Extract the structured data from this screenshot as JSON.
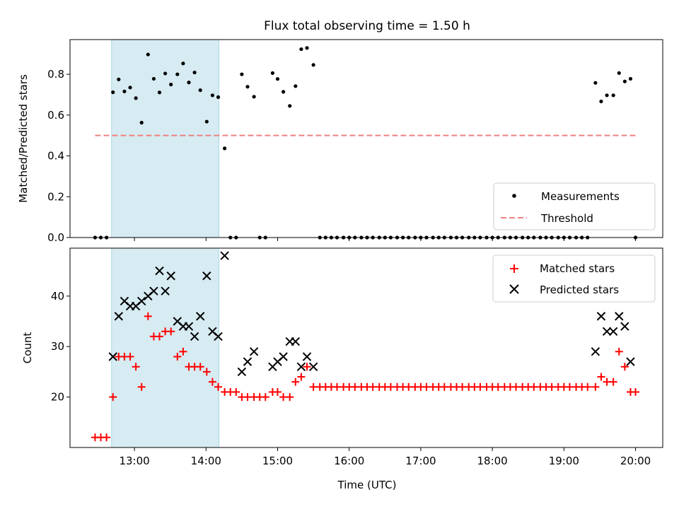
{
  "figure": {
    "title": "Flux total observing time = 1.50 h",
    "xlabel": "Time (UTC)",
    "xticks": [
      "13:00",
      "14:00",
      "15:00",
      "16:00",
      "17:00",
      "18:00",
      "19:00",
      "20:00"
    ]
  },
  "colors": {
    "shade": "#add8e6",
    "threshold": "#f08080",
    "matched": "#ff0000",
    "predicted": "#000000",
    "measurements": "#000000"
  },
  "chart_data": [
    {
      "type": "scatter",
      "ylabel": "Matched/Predicted stars",
      "xunit": "hours UTC",
      "xlim": [
        12.1,
        20.38
      ],
      "ylim": [
        0,
        0.97
      ],
      "yticks": [
        "0.0",
        "0.2",
        "0.4",
        "0.6",
        "0.8"
      ],
      "shaded_span": [
        12.68,
        14.18
      ],
      "threshold": {
        "name": "Threshold",
        "value": 0.5,
        "x": [
          12.45,
          20.0
        ]
      },
      "legend": {
        "position": "lower-right",
        "entries": [
          "Measurements",
          "Threshold"
        ]
      },
      "series": [
        {
          "name": "Measurements",
          "points": [
            [
              12.45,
              0
            ],
            [
              12.53,
              0
            ],
            [
              12.61,
              0
            ],
            [
              12.7,
              0.712
            ],
            [
              12.78,
              0.775
            ],
            [
              12.86,
              0.716
            ],
            [
              12.94,
              0.735
            ],
            [
              13.02,
              0.683
            ],
            [
              13.1,
              0.563
            ],
            [
              13.19,
              0.897
            ],
            [
              13.27,
              0.778
            ],
            [
              13.35,
              0.711
            ],
            [
              13.43,
              0.804
            ],
            [
              13.51,
              0.75
            ],
            [
              13.6,
              0.8
            ],
            [
              13.68,
              0.853
            ],
            [
              13.76,
              0.76
            ],
            [
              13.84,
              0.809
            ],
            [
              13.92,
              0.722
            ],
            [
              14.01,
              0.568
            ],
            [
              14.09,
              0.697
            ],
            [
              14.17,
              0.688
            ],
            [
              14.26,
              0.437
            ],
            [
              14.34,
              0
            ],
            [
              14.42,
              0
            ],
            [
              14.5,
              0.8
            ],
            [
              14.58,
              0.739
            ],
            [
              14.67,
              0.69
            ],
            [
              14.75,
              0
            ],
            [
              14.83,
              0
            ],
            [
              14.93,
              0.806
            ],
            [
              15.0,
              0.777
            ],
            [
              15.08,
              0.714
            ],
            [
              15.17,
              0.645
            ],
            [
              15.25,
              0.742
            ],
            [
              15.33,
              0.923
            ],
            [
              15.41,
              0.929
            ],
            [
              15.5,
              0.846
            ],
            [
              15.59,
              0
            ],
            [
              15.67,
              0
            ],
            [
              15.75,
              0
            ],
            [
              15.83,
              0
            ],
            [
              15.92,
              0
            ],
            [
              16.0,
              0
            ],
            [
              16.08,
              0
            ],
            [
              16.17,
              0
            ],
            [
              16.25,
              0
            ],
            [
              16.33,
              0
            ],
            [
              16.42,
              0
            ],
            [
              16.5,
              0
            ],
            [
              16.58,
              0
            ],
            [
              16.67,
              0
            ],
            [
              16.75,
              0
            ],
            [
              16.83,
              0
            ],
            [
              16.92,
              0
            ],
            [
              17.0,
              0
            ],
            [
              17.08,
              0
            ],
            [
              17.17,
              0
            ],
            [
              17.25,
              0
            ],
            [
              17.33,
              0
            ],
            [
              17.42,
              0
            ],
            [
              17.5,
              0
            ],
            [
              17.58,
              0
            ],
            [
              17.67,
              0
            ],
            [
              17.75,
              0
            ],
            [
              17.83,
              0
            ],
            [
              17.92,
              0
            ],
            [
              18.0,
              0
            ],
            [
              18.08,
              0
            ],
            [
              18.17,
              0
            ],
            [
              18.25,
              0
            ],
            [
              18.33,
              0
            ],
            [
              18.42,
              0
            ],
            [
              18.5,
              0
            ],
            [
              18.58,
              0
            ],
            [
              18.67,
              0
            ],
            [
              18.75,
              0
            ],
            [
              18.83,
              0
            ],
            [
              18.92,
              0
            ],
            [
              19.0,
              0
            ],
            [
              19.08,
              0
            ],
            [
              19.17,
              0
            ],
            [
              19.25,
              0
            ],
            [
              19.33,
              0
            ],
            [
              19.44,
              0.758
            ],
            [
              19.52,
              0.667
            ],
            [
              19.6,
              0.697
            ],
            [
              19.69,
              0.697
            ],
            [
              19.77,
              0.806
            ],
            [
              19.85,
              0.765
            ],
            [
              19.93,
              0.778
            ],
            [
              20.0,
              0
            ]
          ]
        }
      ]
    },
    {
      "type": "scatter",
      "ylabel": "Count",
      "xunit": "hours UTC",
      "xlim": [
        12.1,
        20.38
      ],
      "ylim": [
        10,
        49.5
      ],
      "yticks": [
        "20",
        "30",
        "40"
      ],
      "shaded_span": [
        12.68,
        14.18
      ],
      "legend": {
        "position": "upper-right",
        "entries": [
          "Matched stars",
          "Predicted stars"
        ]
      },
      "series": [
        {
          "name": "Matched stars",
          "points": [
            [
              12.45,
              12
            ],
            [
              12.53,
              12
            ],
            [
              12.61,
              12
            ],
            [
              12.7,
              20
            ],
            [
              12.78,
              28
            ],
            [
              12.86,
              28
            ],
            [
              12.94,
              28
            ],
            [
              13.02,
              26
            ],
            [
              13.1,
              22
            ],
            [
              13.19,
              36
            ],
            [
              13.27,
              32
            ],
            [
              13.35,
              32
            ],
            [
              13.43,
              33
            ],
            [
              13.51,
              33
            ],
            [
              13.6,
              28
            ],
            [
              13.68,
              29
            ],
            [
              13.76,
              26
            ],
            [
              13.84,
              26
            ],
            [
              13.92,
              26
            ],
            [
              14.01,
              25
            ],
            [
              14.09,
              23
            ],
            [
              14.17,
              22
            ],
            [
              14.26,
              21
            ],
            [
              14.34,
              21
            ],
            [
              14.42,
              21
            ],
            [
              14.5,
              20
            ],
            [
              14.58,
              20
            ],
            [
              14.67,
              20
            ],
            [
              14.75,
              20
            ],
            [
              14.83,
              20
            ],
            [
              14.93,
              21
            ],
            [
              15.0,
              21
            ],
            [
              15.08,
              20
            ],
            [
              15.17,
              20
            ],
            [
              15.25,
              23
            ],
            [
              15.33,
              24
            ],
            [
              15.41,
              26
            ],
            [
              15.5,
              22
            ],
            [
              15.59,
              22
            ],
            [
              15.67,
              22
            ],
            [
              15.75,
              22
            ],
            [
              15.83,
              22
            ],
            [
              15.92,
              22
            ],
            [
              16.0,
              22
            ],
            [
              16.08,
              22
            ],
            [
              16.17,
              22
            ],
            [
              16.25,
              22
            ],
            [
              16.33,
              22
            ],
            [
              16.42,
              22
            ],
            [
              16.5,
              22
            ],
            [
              16.58,
              22
            ],
            [
              16.67,
              22
            ],
            [
              16.75,
              22
            ],
            [
              16.83,
              22
            ],
            [
              16.92,
              22
            ],
            [
              17.0,
              22
            ],
            [
              17.08,
              22
            ],
            [
              17.17,
              22
            ],
            [
              17.25,
              22
            ],
            [
              17.33,
              22
            ],
            [
              17.42,
              22
            ],
            [
              17.5,
              22
            ],
            [
              17.58,
              22
            ],
            [
              17.67,
              22
            ],
            [
              17.75,
              22
            ],
            [
              17.83,
              22
            ],
            [
              17.92,
              22
            ],
            [
              18.0,
              22
            ],
            [
              18.08,
              22
            ],
            [
              18.17,
              22
            ],
            [
              18.25,
              22
            ],
            [
              18.33,
              22
            ],
            [
              18.42,
              22
            ],
            [
              18.5,
              22
            ],
            [
              18.58,
              22
            ],
            [
              18.67,
              22
            ],
            [
              18.75,
              22
            ],
            [
              18.83,
              22
            ],
            [
              18.92,
              22
            ],
            [
              19.0,
              22
            ],
            [
              19.08,
              22
            ],
            [
              19.17,
              22
            ],
            [
              19.25,
              22
            ],
            [
              19.33,
              22
            ],
            [
              19.44,
              22
            ],
            [
              19.52,
              24
            ],
            [
              19.6,
              23
            ],
            [
              19.69,
              23
            ],
            [
              19.77,
              29
            ],
            [
              19.85,
              26
            ],
            [
              19.93,
              21
            ],
            [
              20.0,
              21
            ]
          ]
        },
        {
          "name": "Predicted stars",
          "points": [
            [
              12.7,
              28
            ],
            [
              12.78,
              36
            ],
            [
              12.86,
              39
            ],
            [
              12.94,
              38
            ],
            [
              13.02,
              38
            ],
            [
              13.1,
              39
            ],
            [
              13.19,
              40
            ],
            [
              13.27,
              41
            ],
            [
              13.35,
              45
            ],
            [
              13.43,
              41
            ],
            [
              13.51,
              44
            ],
            [
              13.6,
              35
            ],
            [
              13.68,
              34
            ],
            [
              13.76,
              34
            ],
            [
              13.84,
              32
            ],
            [
              13.92,
              36
            ],
            [
              14.01,
              44
            ],
            [
              14.09,
              33
            ],
            [
              14.17,
              32
            ],
            [
              14.26,
              48
            ],
            [
              14.5,
              25
            ],
            [
              14.58,
              27
            ],
            [
              14.67,
              29
            ],
            [
              14.93,
              26
            ],
            [
              15.0,
              27
            ],
            [
              15.08,
              28
            ],
            [
              15.17,
              31
            ],
            [
              15.25,
              31
            ],
            [
              15.33,
              26
            ],
            [
              15.41,
              28
            ],
            [
              15.5,
              26
            ],
            [
              19.44,
              29
            ],
            [
              19.52,
              36
            ],
            [
              19.6,
              33
            ],
            [
              19.69,
              33
            ],
            [
              19.77,
              36
            ],
            [
              19.85,
              34
            ],
            [
              19.93,
              27
            ]
          ]
        }
      ]
    }
  ]
}
